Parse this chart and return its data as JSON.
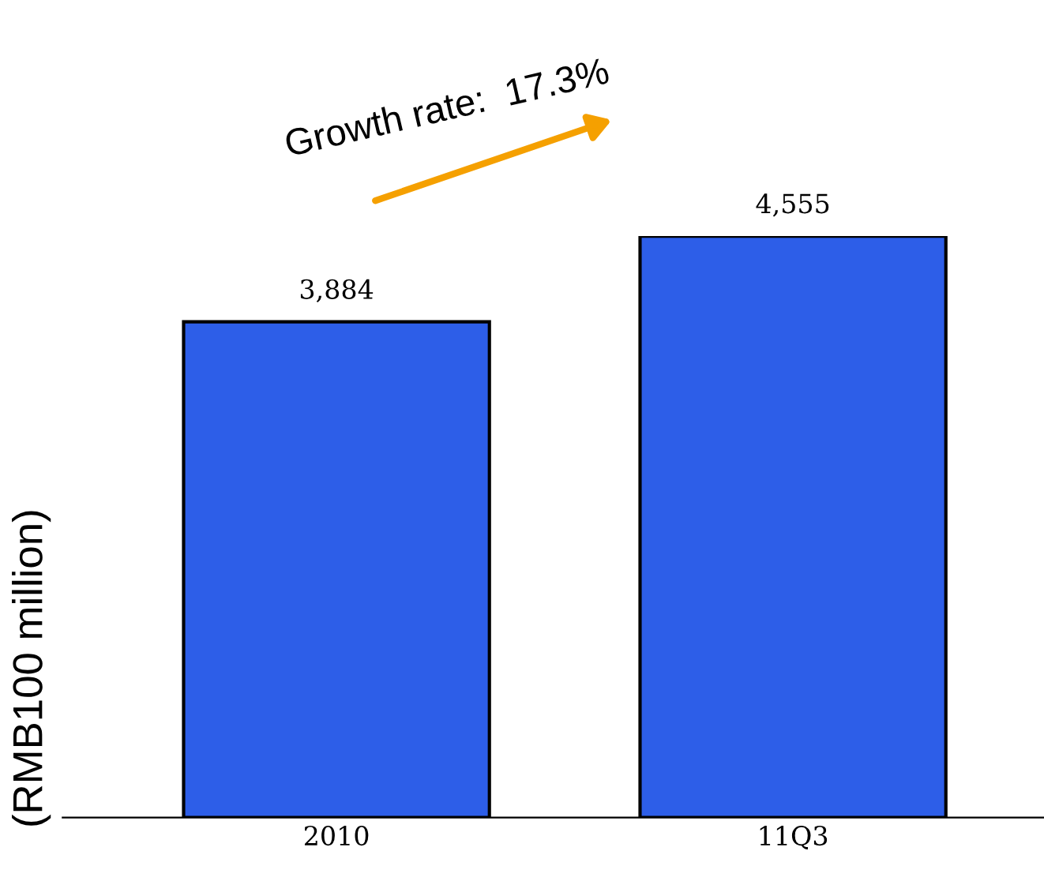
{
  "chart_data": {
    "type": "bar",
    "ylabel": "(RMB100 million)",
    "categories": [
      "2010",
      "11Q3"
    ],
    "values": [
      3884,
      4555
    ],
    "value_labels": [
      "3,884",
      "4,555"
    ],
    "color": "#2d5ee8",
    "annotations": [
      "Growth rate:  17.3%"
    ],
    "grid": false,
    "legend": false
  }
}
